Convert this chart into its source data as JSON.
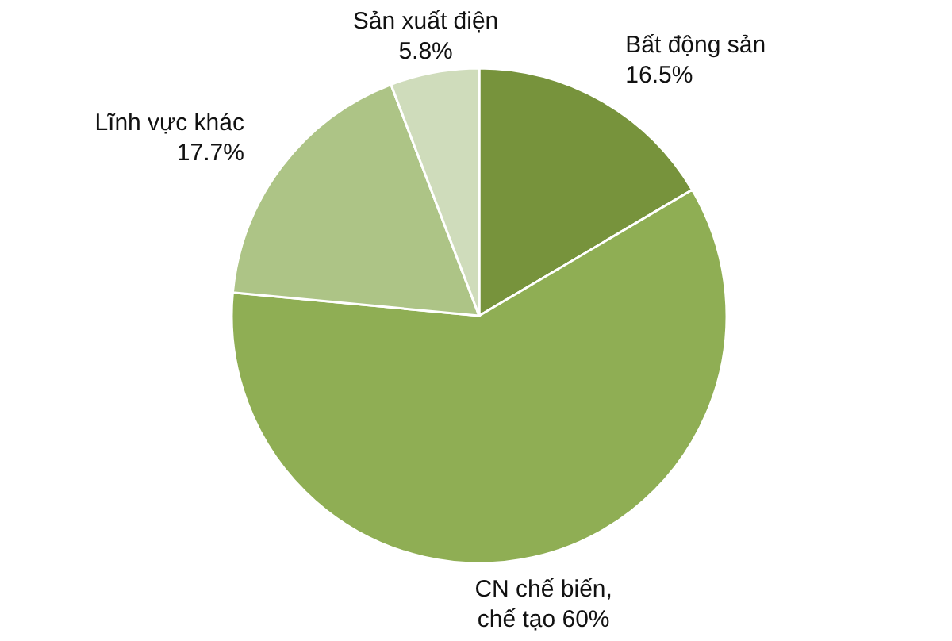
{
  "chart_data": {
    "type": "pie",
    "categories": [
      "Bất động sản",
      "CN chế biến, chế tạo",
      "Lĩnh vực khác",
      "Sản xuất điện"
    ],
    "values": [
      16.5,
      60,
      17.7,
      5.8
    ],
    "colors": [
      "#77933c",
      "#8fae54",
      "#adc486",
      "#cfdcbb"
    ],
    "value_labels": [
      "16.5%",
      "60%",
      "17.7%",
      "5.8%"
    ]
  }
}
